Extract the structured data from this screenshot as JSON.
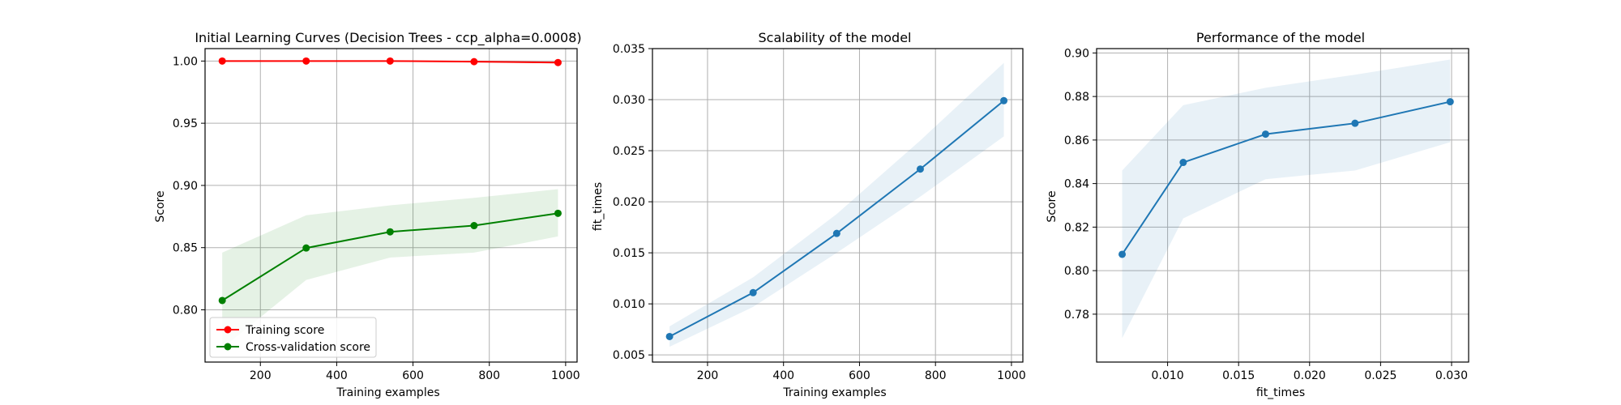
{
  "chart_data": [
    {
      "type": "line",
      "title": "Initial Learning Curves (Decision Trees - ccp_alpha=0.0008)",
      "xlabel": "Training examples",
      "ylabel": "Score",
      "xlim": [
        55,
        1030
      ],
      "ylim": [
        0.758,
        1.01
      ],
      "xticks": [
        200,
        400,
        600,
        800,
        1000
      ],
      "yticks": [
        0.8,
        0.85,
        0.9,
        0.95,
        1.0
      ],
      "ytick_labels": [
        "0.80",
        "0.85",
        "0.90",
        "0.95",
        "1.00"
      ],
      "grid": true,
      "legend": "lower left",
      "x": [
        100,
        320,
        540,
        760,
        980
      ],
      "series": [
        {
          "name": "Training score",
          "color": "#ff0000",
          "values": [
            1.0,
            1.0,
            1.0,
            0.9995,
            0.9988
          ],
          "band_lower": [
            1.0,
            1.0,
            1.0,
            0.9995,
            0.9988
          ],
          "band_upper": [
            1.0,
            1.0,
            1.0,
            0.9995,
            0.9988
          ]
        },
        {
          "name": "Cross-validation score",
          "color": "#008000",
          "values": [
            0.8075,
            0.8497,
            0.8627,
            0.8677,
            0.8776
          ],
          "band_lower": [
            0.769,
            0.824,
            0.842,
            0.846,
            0.859
          ],
          "band_upper": [
            0.846,
            0.876,
            0.884,
            0.89,
            0.897
          ]
        }
      ]
    },
    {
      "type": "line",
      "title": "Scalability of the model",
      "xlabel": "Training examples",
      "ylabel": "fit_times",
      "xlim": [
        55,
        1030
      ],
      "ylim": [
        0.0043,
        0.035
      ],
      "xticks": [
        200,
        400,
        600,
        800,
        1000
      ],
      "yticks": [
        0.005,
        0.01,
        0.015,
        0.02,
        0.025,
        0.03,
        0.035
      ],
      "ytick_labels": [
        "0.005",
        "0.010",
        "0.015",
        "0.020",
        "0.025",
        "0.030",
        "0.035"
      ],
      "grid": true,
      "x": [
        100,
        320,
        540,
        760,
        980
      ],
      "series": [
        {
          "color": "#1f77b4",
          "values": [
            0.0068,
            0.0111,
            0.0169,
            0.0232,
            0.0299
          ],
          "band_lower": [
            0.0058,
            0.0097,
            0.015,
            0.0205,
            0.0264
          ],
          "band_upper": [
            0.0078,
            0.0126,
            0.0188,
            0.026,
            0.0336
          ]
        }
      ]
    },
    {
      "type": "line",
      "title": "Performance of the model",
      "xlabel": "fit_times",
      "ylabel": "Score",
      "xlim": [
        0.005,
        0.0312
      ],
      "ylim": [
        0.758,
        0.902
      ],
      "xticks": [
        0.01,
        0.015,
        0.02,
        0.025,
        0.03
      ],
      "xtick_labels": [
        "0.010",
        "0.015",
        "0.020",
        "0.025",
        "0.030"
      ],
      "yticks": [
        0.78,
        0.8,
        0.82,
        0.84,
        0.86,
        0.88,
        0.9
      ],
      "ytick_labels": [
        "0.78",
        "0.80",
        "0.82",
        "0.84",
        "0.86",
        "0.88",
        "0.90"
      ],
      "grid": true,
      "x": [
        0.0068,
        0.0111,
        0.0169,
        0.0232,
        0.0299
      ],
      "series": [
        {
          "color": "#1f77b4",
          "values": [
            0.8075,
            0.8497,
            0.8627,
            0.8677,
            0.8776
          ],
          "band_lower": [
            0.769,
            0.824,
            0.842,
            0.846,
            0.859
          ],
          "band_upper": [
            0.846,
            0.876,
            0.884,
            0.89,
            0.897
          ]
        }
      ]
    }
  ]
}
